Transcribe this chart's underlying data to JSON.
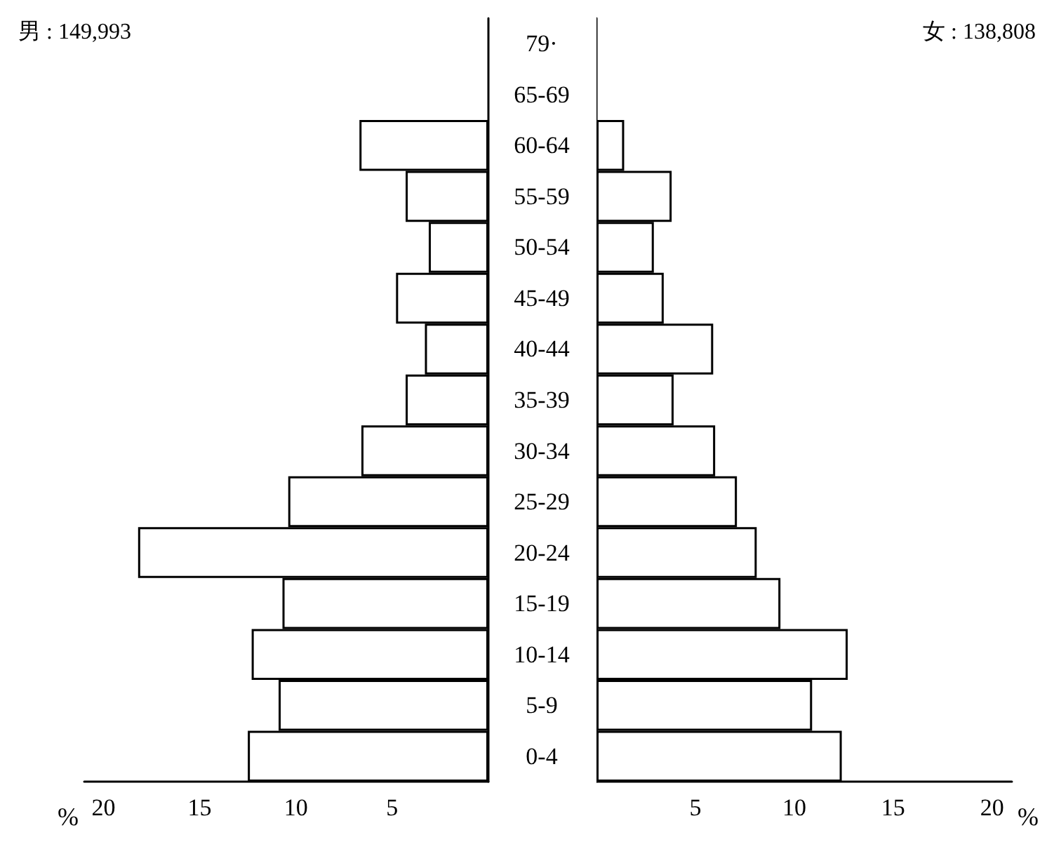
{
  "chart_data": [
    {
      "type": "bar",
      "orientation": "horizontal",
      "title": "男 : 149,993",
      "xlabel": "%",
      "categories": [
        "79·",
        "65-69",
        "60-64",
        "55-59",
        "50-54",
        "45-49",
        "40-44",
        "35-39",
        "30-34",
        "25-29",
        "20-24",
        "15-19",
        "10-14",
        "5-9",
        "0-4"
      ],
      "series": [
        {
          "color": "#000000",
          "values": [
            null,
            null,
            6.7,
            4.3,
            3.1,
            4.8,
            3.3,
            4.3,
            6.6,
            10.4,
            18.2,
            10.7,
            12.3,
            10.9,
            12.5
          ]
        }
      ],
      "xlim": [
        21,
        0
      ],
      "xticks": [
        20,
        15,
        10,
        5
      ]
    },
    {
      "type": "bar",
      "orientation": "horizontal",
      "title": "女 : 138,808",
      "xlabel": "%",
      "series": [
        {
          "color": "#000000",
          "values": [
            null,
            null,
            1.4,
            3.8,
            2.9,
            3.4,
            5.9,
            3.9,
            6.0,
            7.1,
            8.1,
            9.3,
            12.7,
            10.9,
            12.4
          ]
        }
      ],
      "xlim": [
        0,
        21
      ],
      "xticks": [
        5,
        10,
        15,
        20
      ],
      "tick_labels": "x"
    }
  ]
}
